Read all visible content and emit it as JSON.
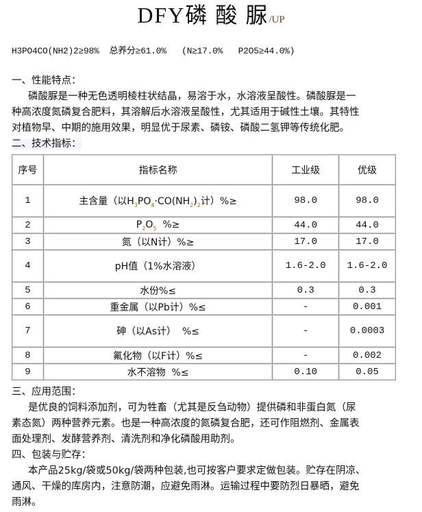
{
  "title": {
    "main": "DFY磷 酸 脲",
    "suffix": "/UP"
  },
  "formula": "H3PO4CO(NH2)2≥98%  总养分≥61.0%   (N≥17.0%   P2O5≥44.0%)",
  "section1": {
    "heading": "一、性能特点：",
    "lines": [
      "磷酸脲是一种无色透明棱柱状结晶，易溶于水，水溶液呈酸性。磷酸脲是一",
      "种高浓度氮磷复合肥料，其溶解后水溶液呈酸性，尤其适用于碱性土壤。其特性",
      "对植物早、中期的施用效果，明显优于尿素、磷铵、磷酸二氢钾等传统化肥。"
    ]
  },
  "section2": {
    "heading": "二、技术指标："
  },
  "table": {
    "headers": [
      "序号",
      "指标名称",
      "工业级",
      "优级"
    ],
    "rows": [
      {
        "no": "1",
        "name": [
          [
            "主含量（以H",
            ""
          ],
          [
            "3",
            "sub"
          ],
          [
            "PO",
            ""
          ],
          [
            "4",
            "sub"
          ],
          [
            "·CO(NH",
            ""
          ],
          [
            "2",
            "sub"
          ],
          [
            ")",
            ""
          ],
          [
            "2",
            "sub"
          ],
          [
            "计）%≥",
            ""
          ]
        ],
        "industrial": "98.0",
        "premium": "98.0"
      },
      {
        "no": "2",
        "name": [
          [
            "P",
            ""
          ],
          [
            "2",
            "sub"
          ],
          [
            "O",
            ""
          ],
          [
            "5",
            "sub"
          ],
          [
            "  %≥",
            ""
          ]
        ],
        "industrial": "44.0",
        "premium": "44.0"
      },
      {
        "no": "3",
        "name": [
          [
            "氮（以N计）%≥",
            ""
          ]
        ],
        "industrial": "17.0",
        "premium": "17.0"
      },
      {
        "no": "4",
        "name": [
          [
            "pH值（1%水溶液）",
            ""
          ]
        ],
        "industrial": "1.6-2.0",
        "premium": "1.6-2.0"
      },
      {
        "no": "5",
        "name": [
          [
            "水份%≤",
            ""
          ]
        ],
        "industrial": "0.3",
        "premium": "0.3"
      },
      {
        "no": "6",
        "name": [
          [
            "重金属（以Pb计）%≤",
            ""
          ]
        ],
        "industrial": "-",
        "premium": "0.001"
      },
      {
        "no": "7",
        "name": [
          [
            "砷（以As计）  %≤",
            ""
          ]
        ],
        "industrial": "-",
        "premium": "0.0003"
      },
      {
        "no": "8",
        "name": [
          [
            "氟化物（以F计）%≤",
            ""
          ]
        ],
        "industrial": "-",
        "premium": "0.002"
      },
      {
        "no": "9",
        "name": [
          [
            "水不溶物  %≤",
            ""
          ]
        ],
        "industrial": "0.10",
        "premium": "0.05"
      }
    ]
  },
  "section3": {
    "heading": "三、应用范围：",
    "lines": [
      "是优良的饲料添加剂，可为牲畜（尤其是反刍动物）提供磷和非蛋白氮（尿",
      "素态氮）两种营养元素。也是一种高浓度的氮磷复合肥，还可作阻燃剂、金属表",
      "面处理剂、发酵营养剂、清洗剂和净化磷酸用助剂。"
    ]
  },
  "section4": {
    "heading": "四、包装与贮存：",
    "lines": [
      "本产品25kg/袋或50kg/袋两种包装,也可按客户要求定做包装。贮存在阴凉、",
      "通风、干燥的库房内，注意防潮，应避免雨淋。运输过程中要防烈日暴晒，避免",
      "雨淋。"
    ]
  }
}
